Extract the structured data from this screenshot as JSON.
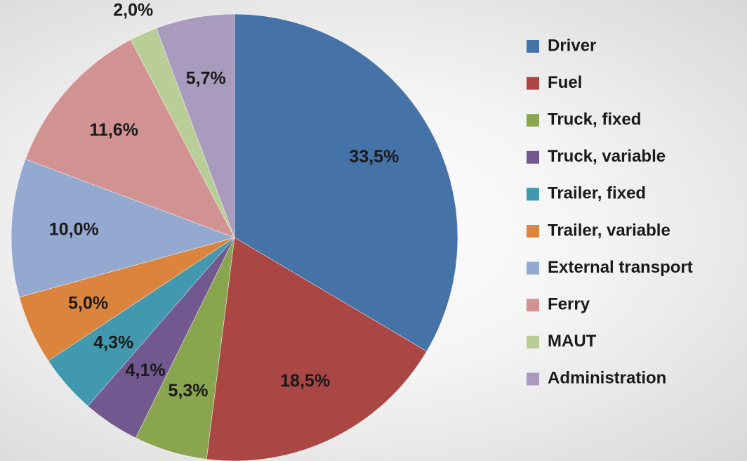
{
  "chart_data": {
    "type": "pie",
    "categories": [
      "Driver",
      "Fuel",
      "Truck, fixed",
      "Truck, variable",
      "Trailer, fixed",
      "Trailer, variable",
      "External transport",
      "Ferry",
      "MAUT",
      "Administration"
    ],
    "values": [
      33.5,
      18.5,
      5.3,
      4.1,
      4.3,
      5.0,
      10.0,
      11.6,
      2.0,
      5.7
    ],
    "value_labels": [
      "33,5%",
      "18,5%",
      "5,3%",
      "4,1%",
      "4,3%",
      "5,0%",
      "10,0%",
      "11,6%",
      "2,0%",
      "5,7%"
    ],
    "colors": [
      "#4572a7",
      "#aa4643",
      "#89a54e",
      "#71588f",
      "#4198af",
      "#db843d",
      "#93a9cf",
      "#d19392",
      "#b9cd96",
      "#a99bbd"
    ],
    "legend": "right"
  }
}
